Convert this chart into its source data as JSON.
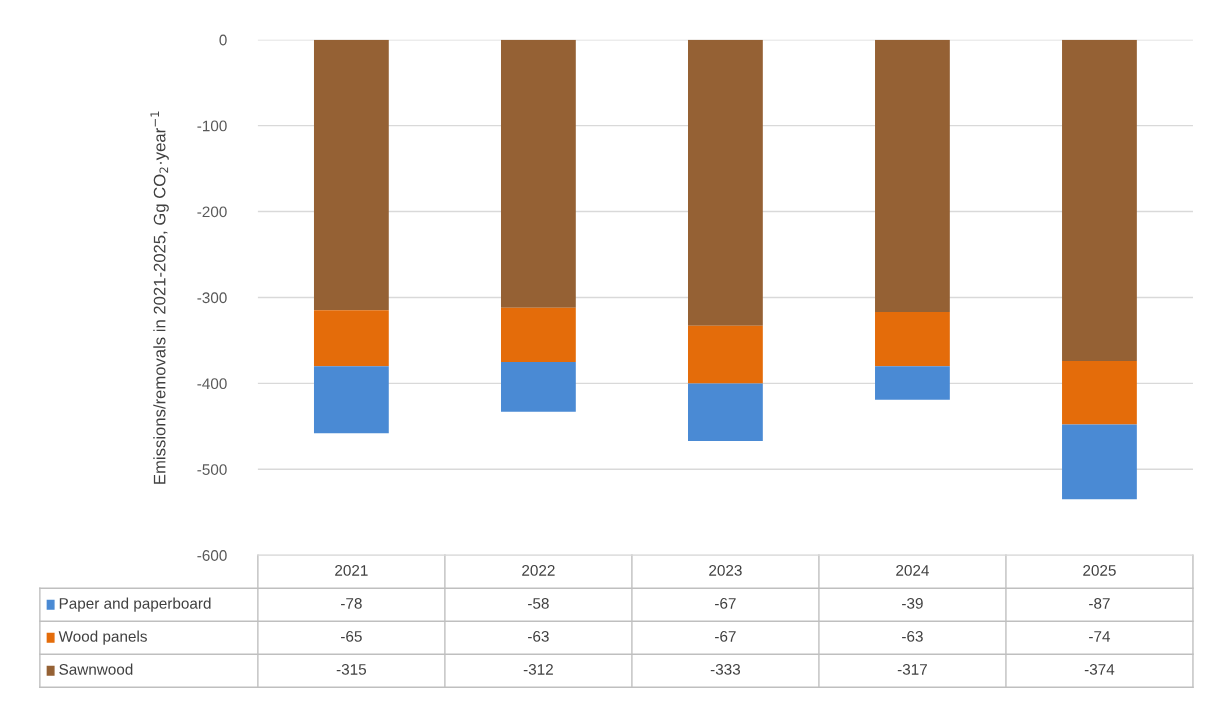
{
  "chart_data": {
    "type": "bar",
    "stacked": true,
    "ylabel": "Emissions/removals in 2021-2025, Gg CO$_{2}$·year$^{−1}$",
    "categories": [
      "2021",
      "2022",
      "2023",
      "2024",
      "2025"
    ],
    "series": [
      {
        "name": "Sawnwood",
        "color": "#956134",
        "values": [
          -315,
          -312,
          -333,
          -317,
          -374
        ]
      },
      {
        "name": "Wood panels",
        "color": "#e46c0a",
        "values": [
          -65,
          -63,
          -67,
          -63,
          -74
        ]
      },
      {
        "name": "Paper and paperboard",
        "color": "#4a8ad4",
        "values": [
          -78,
          -58,
          -67,
          -39,
          -87
        ]
      }
    ],
    "ylim": [
      -600,
      0
    ],
    "yticks": [
      -600,
      -500,
      -400,
      -300,
      -200,
      -100,
      0
    ],
    "grid": "y",
    "legend": "bottom left",
    "data_labels": true
  }
}
